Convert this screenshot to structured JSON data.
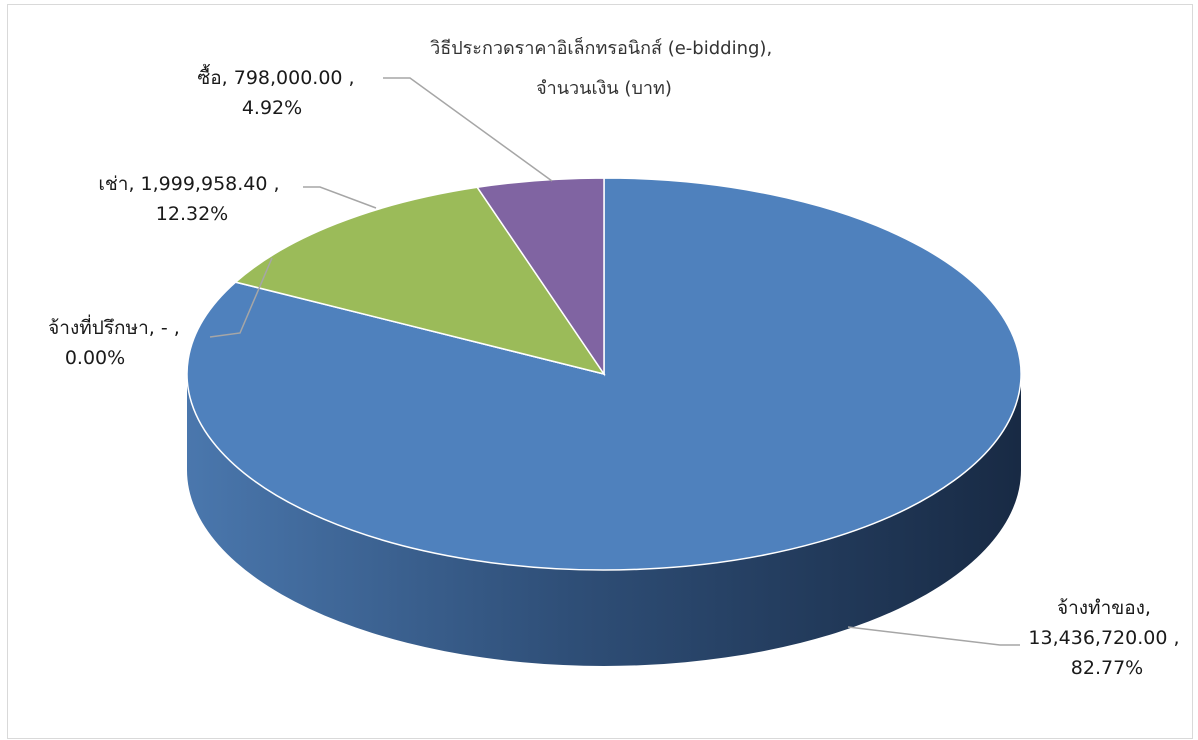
{
  "chart_data": {
    "type": "pie",
    "style": "3d",
    "title": "วิธีประกวดราคาอิเล็กทรอนิกส์ (e-bidding), จำนวนเงิน (บาท)",
    "title_lines": [
      "วิธีประกวดราคาอิเล็กทรอนิกส์ (e-bidding),",
      "จำนวนเงิน (บาท)"
    ],
    "legend": "none",
    "slices": [
      {
        "category": "จ้างทำของ",
        "value": 13436720.0,
        "percent": 82.77,
        "color": "#4f81bd",
        "label_lines": [
          "จ้างทำของ,",
          "13,436,720.00 ,",
          "82.77%"
        ]
      },
      {
        "category": "จ้างที่ปรึกษา",
        "value": 0,
        "percent": 0.0,
        "color": "#c0504d",
        "label_lines": [
          "จ้างที่ปรึกษา,  -    ,",
          "0.00%"
        ]
      },
      {
        "category": "เช่า",
        "value": 1999958.4,
        "percent": 12.32,
        "color": "#9bbb59",
        "label_lines": [
          "เช่า,  1,999,958.40 ,",
          "12.32%"
        ]
      },
      {
        "category": "ซื้อ",
        "value": 798000.0,
        "percent": 4.92,
        "color": "#8064a2",
        "label_lines": [
          "ซื้อ,  798,000.00 ,",
          "4.92%"
        ]
      }
    ]
  }
}
